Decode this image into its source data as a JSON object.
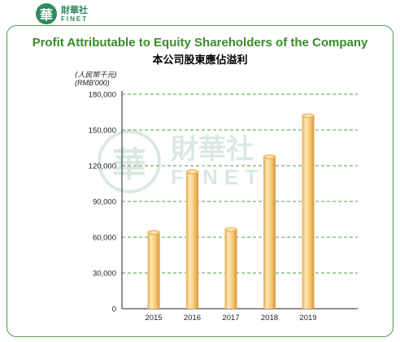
{
  "brand": {
    "mark": "華",
    "name_cn": "財華社",
    "name_en": "FINET"
  },
  "header": {
    "title_en": "Profit Attributable to Equity Shareholders of the Company",
    "title_cn": "本公司股東應佔溢利"
  },
  "colors": {
    "title": "#3a8a2a",
    "frame": "#4f9c4a",
    "gridline": "#4f9c4a",
    "bar_light": "#fde9b8",
    "bar_mid": "#f6c872",
    "bar_dark": "#e0a142",
    "brand": "#2f8a5e"
  },
  "chart_data": {
    "type": "bar",
    "title": "Profit Attributable to Equity Shareholders of the Company",
    "subtitle": "本公司股東應佔溢利",
    "ylabel": "(人民幣千元)",
    "ylabel_en": "(RMB'000)",
    "xlabel": "",
    "categories": [
      "2015",
      "2016",
      "2017",
      "2018",
      "2019"
    ],
    "values": [
      64000,
      115000,
      66500,
      127500,
      162000
    ],
    "ylim": [
      0,
      180000
    ],
    "yticks": [
      0,
      30000,
      60000,
      90000,
      120000,
      150000,
      180000
    ],
    "ytick_labels": [
      "0",
      "30,000",
      "60,000",
      "90,000",
      "120,000",
      "150,000",
      "180,000"
    ],
    "grid": true,
    "legend": "none"
  }
}
